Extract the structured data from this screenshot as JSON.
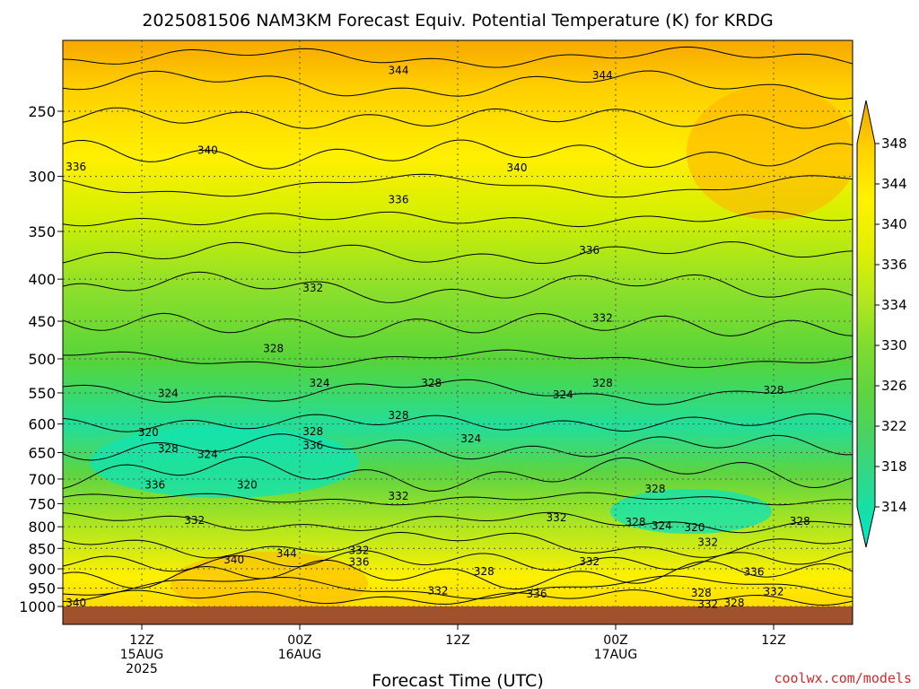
{
  "chart_data": {
    "type": "heatmap",
    "title": "2025081506 NAM3KM Forecast Equiv. Potential Temperature (K) for KRDG",
    "xlabel": "Forecast Time (UTC)",
    "ylabel": "",
    "y_scale": "log",
    "y_reversed": true,
    "y_ticks": [
      250,
      300,
      350,
      400,
      450,
      500,
      550,
      600,
      650,
      700,
      750,
      800,
      850,
      900,
      950,
      1000
    ],
    "x_ticks": [
      {
        "hour": 6,
        "lines": [
          "12Z",
          "15AUG",
          "2025"
        ]
      },
      {
        "hour": 18,
        "lines": [
          "00Z",
          "16AUG"
        ]
      },
      {
        "hour": 30,
        "lines": [
          "12Z"
        ]
      },
      {
        "hour": 42,
        "lines": [
          "00Z",
          "17AUG"
        ]
      },
      {
        "hour": 54,
        "lines": [
          "12Z"
        ]
      }
    ],
    "xlim": [
      0,
      60
    ],
    "ylim": [
      1000,
      200
    ],
    "grid": true,
    "colorbar": {
      "levels": [
        314,
        318,
        322,
        326,
        330,
        334,
        336,
        340,
        344,
        348
      ],
      "labels": [
        "348",
        "344",
        "340",
        "336",
        "334",
        "330",
        "326",
        "322",
        "318",
        "314"
      ],
      "colors": [
        "#00e6c8",
        "#22dd99",
        "#44d36a",
        "#5cd442",
        "#7fdc2e",
        "#b6e81d",
        "#e2f000",
        "#fff200",
        "#ffd200",
        "#f3a500"
      ]
    },
    "contour_labels": [
      {
        "text": "344",
        "hour": 25.5,
        "p": 223
      },
      {
        "text": "344",
        "hour": 41,
        "p": 226
      },
      {
        "text": "340",
        "hour": 11,
        "p": 279
      },
      {
        "text": "340",
        "hour": 34.5,
        "p": 293
      },
      {
        "text": "336",
        "hour": 1,
        "p": 292
      },
      {
        "text": "336",
        "hour": 25.5,
        "p": 320
      },
      {
        "text": "336",
        "hour": 40,
        "p": 369
      },
      {
        "text": "332",
        "hour": 19,
        "p": 410
      },
      {
        "text": "332",
        "hour": 41,
        "p": 446
      },
      {
        "text": "328",
        "hour": 16,
        "p": 486
      },
      {
        "text": "324",
        "hour": 8,
        "p": 551
      },
      {
        "text": "324",
        "hour": 19.5,
        "p": 535
      },
      {
        "text": "328",
        "hour": 28,
        "p": 535
      },
      {
        "text": "324",
        "hour": 38,
        "p": 553
      },
      {
        "text": "328",
        "hour": 41,
        "p": 535
      },
      {
        "text": "328",
        "hour": 54,
        "p": 546
      },
      {
        "text": "328",
        "hour": 25.5,
        "p": 586
      },
      {
        "text": "320",
        "hour": 6.5,
        "p": 614
      },
      {
        "text": "328",
        "hour": 19,
        "p": 613
      },
      {
        "text": "336",
        "hour": 19,
        "p": 637
      },
      {
        "text": "328",
        "hour": 8,
        "p": 643
      },
      {
        "text": "324",
        "hour": 11,
        "p": 653
      },
      {
        "text": "324",
        "hour": 31,
        "p": 625
      },
      {
        "text": "336",
        "hour": 7,
        "p": 712
      },
      {
        "text": "320",
        "hour": 14,
        "p": 712
      },
      {
        "text": "332",
        "hour": 25.5,
        "p": 734
      },
      {
        "text": "328",
        "hour": 45,
        "p": 720
      },
      {
        "text": "332",
        "hour": 10,
        "p": 786
      },
      {
        "text": "332",
        "hour": 37.5,
        "p": 780
      },
      {
        "text": "328",
        "hour": 43.5,
        "p": 790
      },
      {
        "text": "324",
        "hour": 45.5,
        "p": 798
      },
      {
        "text": "320",
        "hour": 48,
        "p": 802
      },
      {
        "text": "332",
        "hour": 49,
        "p": 836
      },
      {
        "text": "328",
        "hour": 56,
        "p": 788
      },
      {
        "text": "340",
        "hour": 13,
        "p": 878
      },
      {
        "text": "344",
        "hour": 17,
        "p": 862
      },
      {
        "text": "332",
        "hour": 22.5,
        "p": 855
      },
      {
        "text": "336",
        "hour": 22.5,
        "p": 883
      },
      {
        "text": "332",
        "hour": 40,
        "p": 882
      },
      {
        "text": "328",
        "hour": 32,
        "p": 907
      },
      {
        "text": "332",
        "hour": 28.5,
        "p": 957
      },
      {
        "text": "336",
        "hour": 36,
        "p": 965
      },
      {
        "text": "336",
        "hour": 52.5,
        "p": 908
      },
      {
        "text": "332",
        "hour": 54,
        "p": 960
      },
      {
        "text": "328",
        "hour": 48.5,
        "p": 963
      },
      {
        "text": "332",
        "hour": 49,
        "p": 994
      },
      {
        "text": "328",
        "hour": 51,
        "p": 990
      },
      {
        "text": "340",
        "hour": 1,
        "p": 990
      }
    ]
  },
  "credit": "coolwx.com/models"
}
